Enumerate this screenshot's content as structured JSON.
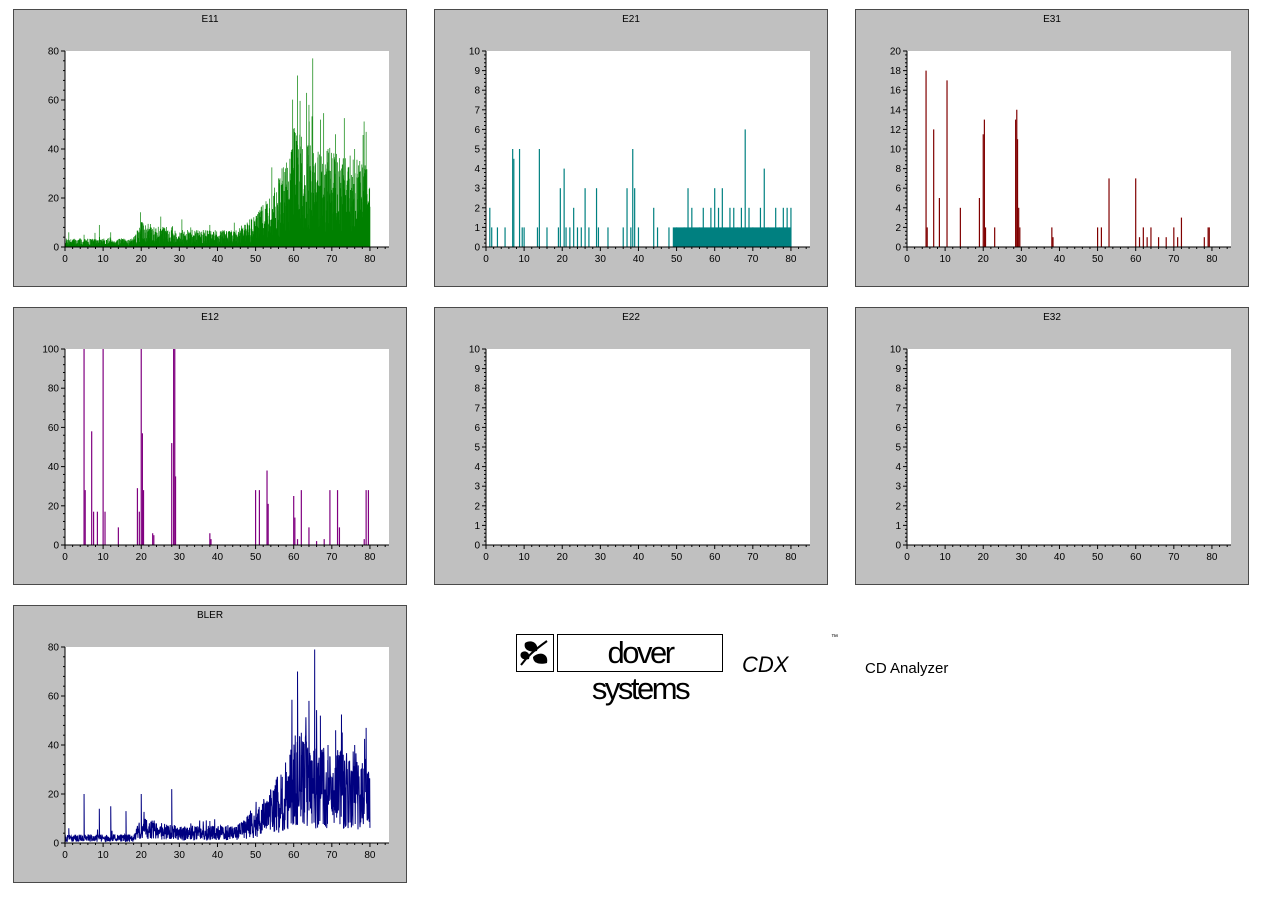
{
  "brand": {
    "company": "dover systems",
    "product": "CDX",
    "trademark": "™",
    "subtitle": "CD Analyzer",
    "icon": "leaf-logo-icon"
  },
  "chart_data": [
    {
      "id": "E11",
      "type": "bar",
      "title": "E11",
      "color": "#008000",
      "xlim": [
        0,
        85
      ],
      "ylim": [
        0,
        80
      ],
      "yticks": [
        0,
        20,
        40,
        60,
        80
      ],
      "xticks": [
        0,
        10,
        20,
        30,
        40,
        50,
        60,
        70,
        80
      ],
      "x_range": [
        0,
        80
      ],
      "profile": [
        [
          0,
          2
        ],
        [
          10,
          2
        ],
        [
          18,
          2
        ],
        [
          20,
          6
        ],
        [
          30,
          4
        ],
        [
          40,
          4
        ],
        [
          45,
          4
        ],
        [
          50,
          8
        ],
        [
          55,
          14
        ],
        [
          58,
          20
        ],
        [
          60,
          28
        ],
        [
          62,
          26
        ],
        [
          65,
          24
        ],
        [
          70,
          22
        ],
        [
          75,
          22
        ],
        [
          79,
          20
        ],
        [
          80,
          15
        ]
      ],
      "peaks": [
        [
          1,
          6
        ],
        [
          5,
          5
        ],
        [
          9,
          9
        ],
        [
          12,
          6
        ],
        [
          20,
          10
        ],
        [
          28,
          8
        ],
        [
          33,
          8
        ],
        [
          38,
          9
        ],
        [
          48,
          6
        ],
        [
          55,
          22
        ],
        [
          57,
          27
        ],
        [
          59,
          36
        ],
        [
          61,
          70
        ],
        [
          62,
          45
        ],
        [
          64,
          58
        ],
        [
          65,
          77
        ],
        [
          67,
          52
        ],
        [
          69,
          40
        ],
        [
          71,
          46
        ],
        [
          73,
          36
        ],
        [
          76,
          40
        ],
        [
          79,
          47
        ]
      ]
    },
    {
      "id": "E21",
      "type": "bar",
      "title": "E21",
      "color": "#008080",
      "xlim": [
        0,
        85
      ],
      "ylim": [
        0,
        10
      ],
      "yticks": [
        0,
        1,
        2,
        3,
        4,
        5,
        6,
        7,
        8,
        9,
        10
      ],
      "xticks": [
        0,
        10,
        20,
        30,
        40,
        50,
        60,
        70,
        80
      ],
      "bars": [
        [
          1,
          2
        ],
        [
          1.5,
          1
        ],
        [
          3,
          1
        ],
        [
          5,
          1
        ],
        [
          7,
          5
        ],
        [
          7.3,
          4.5
        ],
        [
          8.8,
          5
        ],
        [
          9.5,
          1
        ],
        [
          10,
          1
        ],
        [
          13.5,
          1
        ],
        [
          14,
          5
        ],
        [
          16,
          1
        ],
        [
          19,
          1
        ],
        [
          19.5,
          3
        ],
        [
          20.5,
          4
        ],
        [
          21,
          1
        ],
        [
          22,
          1
        ],
        [
          23,
          2
        ],
        [
          24,
          1
        ],
        [
          25,
          1
        ],
        [
          26,
          3
        ],
        [
          27,
          1
        ],
        [
          29,
          3
        ],
        [
          29.5,
          1
        ],
        [
          32,
          1
        ],
        [
          36,
          1
        ],
        [
          37,
          3
        ],
        [
          38,
          1
        ],
        [
          38.5,
          5
        ],
        [
          39,
          3
        ],
        [
          40,
          1
        ],
        [
          44,
          2
        ],
        [
          45,
          1
        ],
        [
          48,
          1
        ],
        [
          50,
          1
        ],
        [
          52,
          1
        ],
        [
          53,
          3
        ],
        [
          54,
          2
        ],
        [
          56,
          1
        ],
        [
          57,
          2
        ],
        [
          59,
          2
        ],
        [
          60,
          3
        ],
        [
          61,
          2
        ],
        [
          62,
          3
        ],
        [
          64,
          2
        ],
        [
          65,
          2
        ],
        [
          66,
          1
        ],
        [
          67,
          2
        ],
        [
          68,
          6
        ],
        [
          69,
          2
        ],
        [
          70,
          1
        ],
        [
          72,
          2
        ],
        [
          73,
          4
        ],
        [
          74,
          1
        ],
        [
          76,
          2
        ],
        [
          77,
          1
        ],
        [
          78,
          2
        ],
        [
          79,
          2
        ],
        [
          80,
          2
        ]
      ],
      "band": [
        [
          49,
          80,
          1
        ]
      ]
    },
    {
      "id": "E31",
      "type": "bar",
      "title": "E31",
      "color": "#800000",
      "xlim": [
        0,
        85
      ],
      "ylim": [
        0,
        20
      ],
      "yticks": [
        0,
        2,
        4,
        6,
        8,
        10,
        12,
        14,
        16,
        18,
        20
      ],
      "xticks": [
        0,
        10,
        20,
        30,
        40,
        50,
        60,
        70,
        80
      ],
      "bars": [
        [
          5,
          18
        ],
        [
          5.3,
          2
        ],
        [
          7,
          12
        ],
        [
          8.5,
          5
        ],
        [
          10.5,
          17
        ],
        [
          14,
          4
        ],
        [
          19,
          5
        ],
        [
          20,
          11.5
        ],
        [
          20.3,
          13
        ],
        [
          20.6,
          2
        ],
        [
          23,
          2
        ],
        [
          28.5,
          13
        ],
        [
          28.8,
          14
        ],
        [
          29,
          11
        ],
        [
          29.3,
          4
        ],
        [
          29.6,
          2
        ],
        [
          38,
          2
        ],
        [
          38.3,
          1
        ],
        [
          50,
          2
        ],
        [
          51,
          2
        ],
        [
          53,
          7
        ],
        [
          60,
          7
        ],
        [
          61,
          1
        ],
        [
          62,
          2
        ],
        [
          63,
          1
        ],
        [
          64,
          2
        ],
        [
          66,
          1
        ],
        [
          68,
          1
        ],
        [
          70,
          2
        ],
        [
          71,
          1
        ],
        [
          72,
          3
        ],
        [
          78,
          1
        ],
        [
          79,
          2
        ],
        [
          79.3,
          2
        ]
      ]
    },
    {
      "id": "E12",
      "type": "bar",
      "title": "E12",
      "color": "#800080",
      "xlim": [
        0,
        85
      ],
      "ylim": [
        0,
        100
      ],
      "yticks": [
        0,
        20,
        40,
        60,
        80,
        100
      ],
      "xticks": [
        0,
        10,
        20,
        30,
        40,
        50,
        60,
        70,
        80
      ],
      "bars": [
        [
          5,
          100
        ],
        [
          5.3,
          28
        ],
        [
          7,
          58
        ],
        [
          7.5,
          17
        ],
        [
          8.5,
          17
        ],
        [
          10,
          100
        ],
        [
          10.5,
          17
        ],
        [
          14,
          9
        ],
        [
          19,
          29
        ],
        [
          19.5,
          17
        ],
        [
          20,
          100
        ],
        [
          20.3,
          57
        ],
        [
          20.6,
          28
        ],
        [
          23,
          6
        ],
        [
          23.3,
          5
        ],
        [
          28,
          52
        ],
        [
          28.5,
          100
        ],
        [
          28.8,
          100
        ],
        [
          29,
          35
        ],
        [
          38,
          6
        ],
        [
          38.3,
          3
        ],
        [
          50,
          28
        ],
        [
          51,
          28
        ],
        [
          53,
          38
        ],
        [
          53.3,
          21
        ],
        [
          60,
          25
        ],
        [
          60.3,
          14
        ],
        [
          61,
          3
        ],
        [
          62,
          28
        ],
        [
          64,
          9
        ],
        [
          66,
          2
        ],
        [
          68,
          3
        ],
        [
          69.5,
          28
        ],
        [
          71.5,
          28
        ],
        [
          72,
          9
        ],
        [
          78.5,
          3
        ],
        [
          79,
          28
        ],
        [
          79.6,
          28
        ]
      ]
    },
    {
      "id": "E22",
      "type": "bar",
      "title": "E22",
      "color": "#008080",
      "xlim": [
        0,
        85
      ],
      "ylim": [
        0,
        10
      ],
      "yticks": [
        0,
        1,
        2,
        3,
        4,
        5,
        6,
        7,
        8,
        9,
        10
      ],
      "xticks": [
        0,
        10,
        20,
        30,
        40,
        50,
        60,
        70,
        80
      ],
      "bars": []
    },
    {
      "id": "E32",
      "type": "bar",
      "title": "E32",
      "color": "#800000",
      "xlim": [
        0,
        85
      ],
      "ylim": [
        0,
        10
      ],
      "yticks": [
        0,
        1,
        2,
        3,
        4,
        5,
        6,
        7,
        8,
        9,
        10
      ],
      "xticks": [
        0,
        10,
        20,
        30,
        40,
        50,
        60,
        70,
        80
      ],
      "bars": []
    },
    {
      "id": "BLER",
      "type": "line",
      "title": "BLER",
      "color": "#000080",
      "xlim": [
        0,
        85
      ],
      "ylim": [
        0,
        80
      ],
      "yticks": [
        0,
        20,
        40,
        60,
        80
      ],
      "xticks": [
        0,
        10,
        20,
        30,
        40,
        50,
        60,
        70,
        80
      ],
      "x_range": [
        0,
        80
      ],
      "profile": [
        [
          0,
          2
        ],
        [
          10,
          2
        ],
        [
          18,
          2
        ],
        [
          20,
          6
        ],
        [
          30,
          4
        ],
        [
          40,
          4
        ],
        [
          45,
          4
        ],
        [
          50,
          8
        ],
        [
          55,
          14
        ],
        [
          58,
          20
        ],
        [
          60,
          28
        ],
        [
          62,
          26
        ],
        [
          65,
          24
        ],
        [
          70,
          22
        ],
        [
          75,
          22
        ],
        [
          79,
          20
        ],
        [
          80,
          15
        ]
      ],
      "peaks": [
        [
          1,
          6
        ],
        [
          5,
          20
        ],
        [
          9,
          14
        ],
        [
          12,
          15
        ],
        [
          16,
          13
        ],
        [
          20,
          20
        ],
        [
          24,
          8
        ],
        [
          28,
          22
        ],
        [
          33,
          8
        ],
        [
          38,
          9
        ],
        [
          48,
          6
        ],
        [
          55,
          22
        ],
        [
          57,
          27
        ],
        [
          59,
          36
        ],
        [
          61,
          70
        ],
        [
          62,
          45
        ],
        [
          64,
          58
        ],
        [
          65.5,
          79
        ],
        [
          67,
          52
        ],
        [
          69,
          40
        ],
        [
          71,
          46
        ],
        [
          73,
          36
        ],
        [
          76,
          40
        ],
        [
          79,
          47
        ]
      ]
    }
  ]
}
